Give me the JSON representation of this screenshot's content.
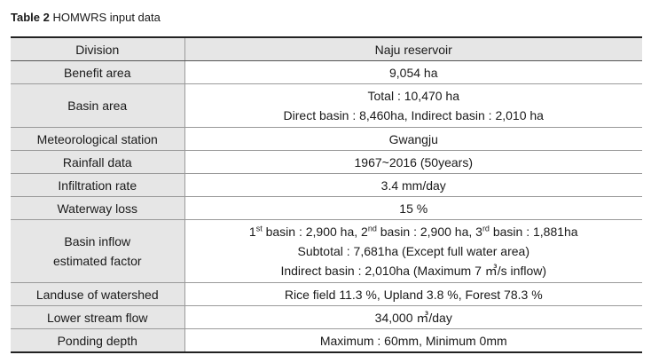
{
  "caption": {
    "label": "Table 2",
    "title": "HOMWRS input data"
  },
  "table": {
    "header": {
      "division": "Division",
      "value": "Naju reservoir"
    },
    "rows": {
      "benefit_area": {
        "label": "Benefit area",
        "value": "9,054 ha"
      },
      "basin_area": {
        "label": "Basin area",
        "line1": "Total : 10,470 ha",
        "line2": "Direct basin : 8,460ha, Indirect basin : 2,010 ha"
      },
      "meteorological_station": {
        "label": "Meteorological station",
        "value": "Gwangju"
      },
      "rainfall_data": {
        "label": "Rainfall data",
        "value": "1967~2016 (50years)"
      },
      "infiltration_rate": {
        "label": "Infiltration rate",
        "value": "3.4 mm/day"
      },
      "waterway_loss": {
        "label": "Waterway loss",
        "value": "15 %"
      },
      "basin_inflow": {
        "label_line1": "Basin inflow",
        "label_line2": "estimated factor",
        "line1": {
          "p1": "1",
          "s1": "st",
          "t1": " basin : 2,900 ha, ",
          "p2": "2",
          "s2": "nd",
          "t2": " basin : 2,900 ha, ",
          "p3": "3",
          "s3": "rd",
          "t3": " basin : 1,881ha"
        },
        "line2": "Subtotal : 7,681ha (Except full water area)",
        "line3": "Indirect basin : 2,010ha (Maximum 7 ㎥/s inflow)"
      },
      "landuse": {
        "label": "Landuse of watershed",
        "value": "Rice field 11.3 %, Upland 3.8 %, Forest 78.3 %"
      },
      "lower_stream_flow": {
        "label": "Lower stream flow",
        "value": "34,000 ㎥/day"
      },
      "ponding_depth": {
        "label": "Ponding depth",
        "value": "Maximum : 60mm, Minimum 0mm"
      }
    }
  }
}
